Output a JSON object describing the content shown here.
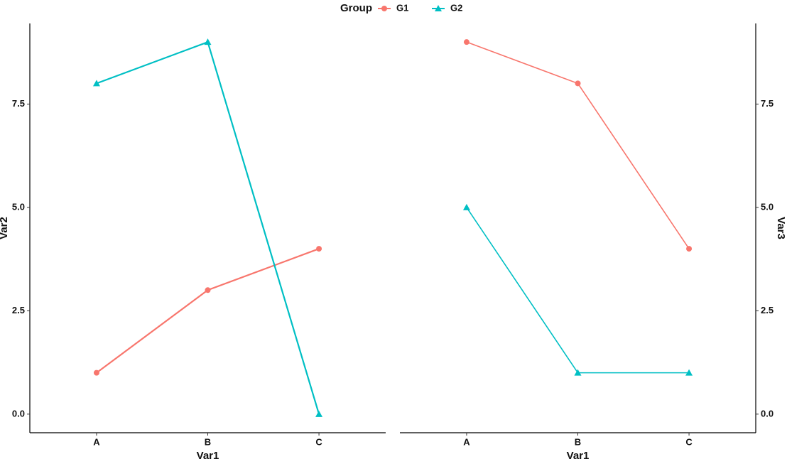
{
  "chart_data": [
    {
      "type": "line",
      "legend_title": "Group",
      "legend_position": "top",
      "x_label": "Var1",
      "y_label": "Var2",
      "y_axis_side": "left",
      "categories": [
        "A",
        "B",
        "C"
      ],
      "series": [
        {
          "name": "G1",
          "color": "#F8766D",
          "marker": "circle",
          "values": [
            1,
            3,
            4
          ]
        },
        {
          "name": "G2",
          "color": "#00BFC4",
          "marker": "triangle",
          "values": [
            8,
            9,
            0
          ]
        }
      ],
      "ylim": [
        -0.45,
        9.45
      ],
      "yticks": [
        {
          "value": 0,
          "label": "0.0"
        },
        {
          "value": 2.5,
          "label": "2.5"
        },
        {
          "value": 5,
          "label": "5.0"
        },
        {
          "value": 7.5,
          "label": "7.5"
        }
      ]
    },
    {
      "type": "line",
      "x_label": "Var1",
      "y_label": "Var3",
      "y_axis_side": "right",
      "categories": [
        "A",
        "B",
        "C"
      ],
      "series": [
        {
          "name": "G1",
          "color": "#F8766D",
          "marker": "circle",
          "values": [
            9,
            8,
            4
          ]
        },
        {
          "name": "G2",
          "color": "#00BFC4",
          "marker": "triangle",
          "values": [
            5,
            1,
            1
          ]
        }
      ],
      "ylim": [
        -0.45,
        9.45
      ],
      "yticks": [
        {
          "value": 0,
          "label": "0.0"
        },
        {
          "value": 2.5,
          "label": "2.5"
        },
        {
          "value": 5,
          "label": "5.0"
        },
        {
          "value": 7.5,
          "label": "7.5"
        }
      ]
    }
  ]
}
